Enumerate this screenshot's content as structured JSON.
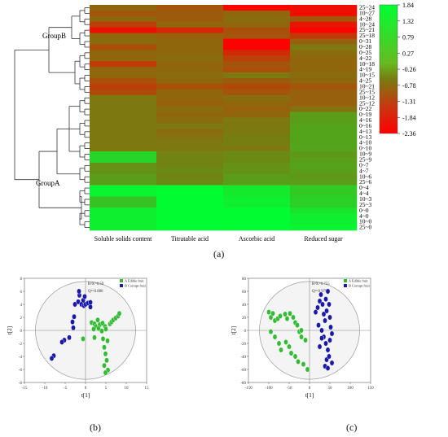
{
  "figure": {
    "panel_a_label": "(a)",
    "panel_b_label": "(b)",
    "panel_c_label": "(c)"
  },
  "chart_data": [
    {
      "type": "heatmap",
      "panel": "a",
      "columns": [
        "Soluble solids content",
        "Titratable acid",
        "Ascorbic acid",
        "Reduced sugar"
      ],
      "rows": [
        "25~24",
        "10~27",
        "4~28",
        "10~24",
        "25~21",
        "25~18",
        "0~31",
        "0~28",
        "0~25",
        "4~22",
        "10~18",
        "4~19",
        "10~15",
        "4~25",
        "10~21",
        "25~15",
        "10~12",
        "25~12",
        "0~22",
        "0~19",
        "4~16",
        "0~16",
        "4~13",
        "0~13",
        "4~10",
        "0~10",
        "10~9",
        "25~9",
        "0~7",
        "4~7",
        "10~6",
        "25~6",
        "0~4",
        "4~4",
        "10~3",
        "25~3",
        "0~0",
        "4~0",
        "10~0",
        "25~0"
      ],
      "values": [
        [
          -0.6,
          -0.9,
          -2.3,
          -2.1
        ],
        [
          -0.9,
          -0.8,
          -0.6,
          -2.1
        ],
        [
          -0.6,
          -0.8,
          -0.5,
          -0.9
        ],
        [
          -1.3,
          -0.6,
          -0.6,
          -2.0
        ],
        [
          -2.1,
          -1.7,
          -1.0,
          -2.3
        ],
        [
          -0.6,
          -0.7,
          -0.9,
          -1.4
        ],
        [
          -0.5,
          -0.6,
          -2.3,
          -0.7
        ],
        [
          -1.0,
          -0.6,
          -2.3,
          -0.3
        ],
        [
          -0.6,
          -0.6,
          -1.6,
          -0.5
        ],
        [
          -0.6,
          -0.5,
          -1.3,
          -0.6
        ],
        [
          -1.4,
          -0.6,
          -0.9,
          -0.6
        ],
        [
          -0.6,
          -0.6,
          -1.0,
          -0.6
        ],
        [
          -0.6,
          -0.5,
          -0.3,
          -0.5
        ],
        [
          -1.0,
          -0.6,
          -0.8,
          -0.6
        ],
        [
          -1.3,
          -1.0,
          -1.1,
          -0.9
        ],
        [
          -1.1,
          -0.6,
          -0.9,
          -0.7
        ],
        [
          -0.3,
          -0.6,
          -0.5,
          -0.7
        ],
        [
          -0.3,
          -0.7,
          -0.6,
          -0.7
        ],
        [
          -0.3,
          -0.5,
          -0.7,
          -0.4
        ],
        [
          -0.3,
          -0.6,
          -0.6,
          0.3
        ],
        [
          -0.3,
          -0.5,
          -0.3,
          0.3
        ],
        [
          -0.3,
          -0.3,
          -0.3,
          0.4
        ],
        [
          -0.3,
          -0.5,
          -0.3,
          0.4
        ],
        [
          -0.3,
          -0.4,
          -0.2,
          0.4
        ],
        [
          -0.3,
          -0.3,
          -0.2,
          0.4
        ],
        [
          -0.3,
          -0.3,
          -0.3,
          0.4
        ],
        [
          1.2,
          -0.1,
          0.0,
          0.2
        ],
        [
          1.2,
          -0.1,
          0.0,
          0.3
        ],
        [
          0.1,
          -0.1,
          0.1,
          0.4
        ],
        [
          0.1,
          0.0,
          0.1,
          0.3
        ],
        [
          0.3,
          -0.1,
          0.3,
          0.2
        ],
        [
          0.3,
          0.0,
          0.3,
          0.3
        ],
        [
          1.7,
          1.8,
          1.5,
          1.0
        ],
        [
          1.7,
          1.8,
          1.5,
          1.0
        ],
        [
          0.9,
          1.8,
          1.6,
          1.1
        ],
        [
          0.9,
          1.8,
          1.6,
          1.1
        ],
        [
          1.6,
          1.8,
          1.8,
          1.4
        ],
        [
          1.6,
          1.8,
          1.8,
          1.6
        ],
        [
          1.6,
          1.8,
          1.8,
          1.6
        ],
        [
          1.6,
          1.8,
          1.8,
          1.7
        ]
      ],
      "colorbar": {
        "ticks": [
          1.84,
          1.32,
          0.79,
          0.27,
          -0.26,
          -0.78,
          -1.31,
          -1.84,
          -2.36
        ],
        "tick_labels": [
          "1.84",
          "1.32",
          "0.79",
          "0.27",
          "-0.26",
          "-0.78",
          "-1.31",
          "-1.84",
          "-2.36"
        ],
        "high_color": "#00ff33",
        "mid_color": "#7a7a10",
        "low_color": "#ff0000"
      },
      "dendrogram_groups": [
        "GroupB",
        "GroupA"
      ]
    },
    {
      "type": "scatter",
      "panel": "b",
      "xlabel": "t[1]",
      "ylabel": "t[2]",
      "x_ticks": [
        -15,
        -10,
        -5,
        0,
        5,
        10,
        15
      ],
      "y_ticks": [
        8,
        6,
        4,
        2,
        0,
        -2,
        -4,
        -6,
        -8
      ],
      "xlim": [
        -15,
        15
      ],
      "ylim": [
        -8,
        8
      ],
      "annotations": [
        "R²X=0.59",
        "Q²=0.886"
      ],
      "series": [
        {
          "name": "A Edible fruit",
          "color": "#33bb33",
          "points": [
            [
              1.5,
              1.2
            ],
            [
              2.2,
              1.0
            ],
            [
              3.0,
              1.6
            ],
            [
              2.5,
              0.6
            ],
            [
              3.5,
              0.9
            ],
            [
              4.2,
              1.1
            ],
            [
              2.0,
              0.2
            ],
            [
              3.2,
              0.3
            ],
            [
              4.8,
              0.6
            ],
            [
              5.0,
              0.2
            ],
            [
              4.0,
              -0.1
            ],
            [
              6.0,
              1.0
            ],
            [
              6.4,
              1.3
            ],
            [
              6.8,
              1.6
            ],
            [
              7.4,
              1.9
            ],
            [
              8.0,
              2.2
            ],
            [
              8.3,
              2.6
            ],
            [
              2.2,
              -1.1
            ],
            [
              4.3,
              -1.3
            ],
            [
              5.4,
              -1.6
            ],
            [
              4.6,
              -2.6
            ],
            [
              4.9,
              -3.6
            ],
            [
              5.2,
              -4.6
            ],
            [
              4.6,
              -5.4
            ],
            [
              5.5,
              -6.1
            ],
            [
              4.9,
              -6.5
            ],
            [
              -0.6,
              -1.3
            ]
          ]
        },
        {
          "name": "B Corrupt fruit",
          "color": "#1a1aaa",
          "points": [
            [
              -2.6,
              4.0
            ],
            [
              -1.8,
              4.4
            ],
            [
              -1.5,
              5.4
            ],
            [
              -0.6,
              4.6
            ],
            [
              -1.0,
              4.0
            ],
            [
              -0.4,
              3.8
            ],
            [
              0.0,
              4.0
            ],
            [
              0.6,
              4.2
            ],
            [
              1.2,
              3.6
            ],
            [
              1.2,
              4.3
            ],
            [
              -0.2,
              5.2
            ],
            [
              -1.6,
              6.0
            ],
            [
              -3.0,
              0.4
            ],
            [
              -2.8,
              2.1
            ],
            [
              -3.2,
              1.3
            ],
            [
              -4.0,
              -1.1
            ],
            [
              -5.2,
              -1.5
            ],
            [
              -5.8,
              -1.8
            ],
            [
              -7.8,
              -3.9
            ],
            [
              -8.3,
              -4.3
            ]
          ]
        }
      ]
    },
    {
      "type": "scatter",
      "panel": "c",
      "xlabel": "t[1]",
      "ylabel": "t[2]",
      "x_ticks": [
        -150,
        -100,
        -50,
        0,
        50,
        100,
        150
      ],
      "y_ticks": [
        80,
        60,
        40,
        20,
        0,
        -20,
        -40,
        -60,
        -80
      ],
      "xlim": [
        -150,
        150
      ],
      "ylim": [
        -80,
        80
      ],
      "annotations": [
        "R²X=0.755",
        "Q²=0.979"
      ],
      "series": [
        {
          "name": "A Edible fruit",
          "color": "#33bb33",
          "points": [
            [
              -100,
              28
            ],
            [
              -95,
              20
            ],
            [
              -90,
              26
            ],
            [
              -85,
              15
            ],
            [
              -78,
              18
            ],
            [
              -72,
              22
            ],
            [
              -60,
              25
            ],
            [
              -55,
              18
            ],
            [
              -48,
              26
            ],
            [
              -40,
              20
            ],
            [
              -35,
              12
            ],
            [
              -30,
              8
            ],
            [
              -25,
              -2
            ],
            [
              -20,
              0
            ],
            [
              -95,
              -2
            ],
            [
              -85,
              -10
            ],
            [
              -75,
              -20
            ],
            [
              -70,
              -30
            ],
            [
              -58,
              -18
            ],
            [
              -50,
              -25
            ],
            [
              -45,
              -35
            ],
            [
              -35,
              -40
            ],
            [
              -28,
              -48
            ],
            [
              -15,
              -52
            ],
            [
              -5,
              -60
            ],
            [
              -20,
              -10
            ],
            [
              -10,
              -15
            ]
          ]
        },
        {
          "name": "B Corrupt fruit",
          "color": "#1a1aaa",
          "points": [
            [
              15,
              28
            ],
            [
              20,
              35
            ],
            [
              25,
              45
            ],
            [
              28,
              55
            ],
            [
              32,
              40
            ],
            [
              35,
              25
            ],
            [
              38,
              15
            ],
            [
              40,
              48
            ],
            [
              42,
              30
            ],
            [
              45,
              60
            ],
            [
              48,
              40
            ],
            [
              50,
              20
            ],
            [
              52,
              5
            ],
            [
              55,
              -5
            ],
            [
              30,
              0
            ],
            [
              35,
              -10
            ],
            [
              40,
              -20
            ],
            [
              45,
              -30
            ],
            [
              50,
              -15
            ],
            [
              42,
              -45
            ],
            [
              48,
              -40
            ],
            [
              38,
              -55
            ],
            [
              45,
              -58
            ],
            [
              55,
              -50
            ],
            [
              25,
              -25
            ],
            [
              30,
              -12
            ],
            [
              22,
              8
            ]
          ]
        }
      ]
    }
  ]
}
